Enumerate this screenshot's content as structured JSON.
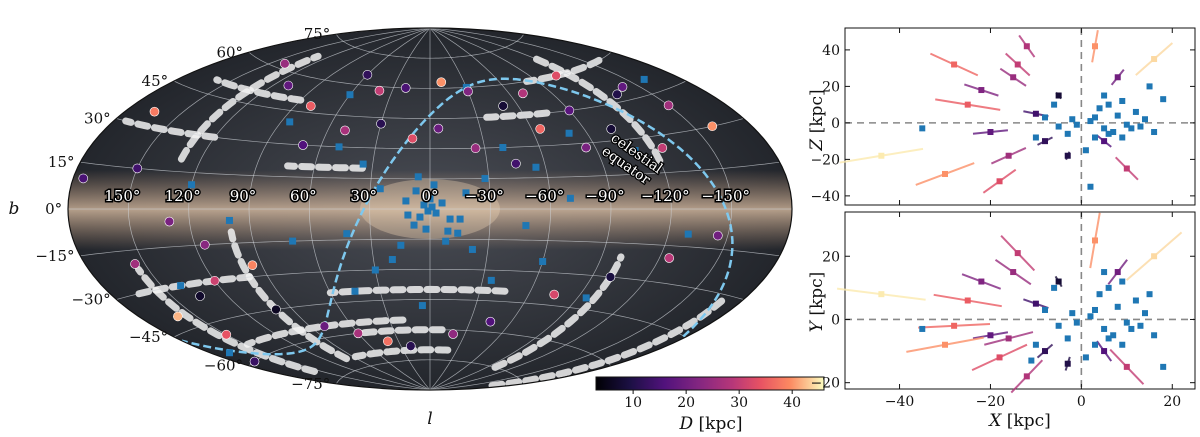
{
  "chart_data": [
    {
      "type": "scatter",
      "projection": "aitoff",
      "xlabel": "l",
      "ylabel": "b",
      "lon_tick_labels": [
        "150°",
        "120°",
        "90°",
        "60°",
        "30°",
        "0°",
        "−30°",
        "−60°",
        "−90°",
        "−120°",
        "−150°"
      ],
      "lon_ticks": [
        150,
        120,
        90,
        60,
        30,
        0,
        -30,
        -60,
        -90,
        -120,
        -150
      ],
      "lat_tick_labels": [
        "75°",
        "60°",
        "45°",
        "30°",
        "15°",
        "0°",
        "−15°",
        "−30°",
        "−45°",
        "−60°",
        "−75°"
      ],
      "lat_ticks": [
        75,
        60,
        45,
        30,
        15,
        0,
        -15,
        -30,
        -45,
        -60,
        -75
      ],
      "annotation": "celestial equator",
      "annotation_lines": [
        "celestial",
        "equator"
      ],
      "background": "all-sky Milky Way image with white survey footprints",
      "series": [
        {
          "marker": "square",
          "color": "#1f77b4",
          "points": [
            [
              0,
              5
            ],
            [
              3,
              2
            ],
            [
              -3,
              -2
            ],
            [
              5,
              -4
            ],
            [
              -6,
              3
            ],
            [
              8,
              -8
            ],
            [
              -10,
              -5
            ],
            [
              2,
              -10
            ],
            [
              -2,
              12
            ],
            [
              12,
              4
            ],
            [
              -14,
              -12
            ],
            [
              6,
              16
            ],
            [
              -8,
              -16
            ],
            [
              15,
              -18
            ],
            [
              -18,
              8
            ],
            [
              20,
              -25
            ],
            [
              -22,
              -20
            ],
            [
              25,
              10
            ],
            [
              -28,
              15
            ],
            [
              30,
              -30
            ],
            [
              -35,
              -35
            ],
            [
              35,
              22
            ],
            [
              -40,
              30
            ],
            [
              42,
              -12
            ],
            [
              -48,
              -8
            ],
            [
              -55,
              20
            ],
            [
              50,
              30
            ],
            [
              -60,
              -25
            ],
            [
              45,
              -40
            ],
            [
              -70,
              5
            ],
            [
              70,
              -15
            ],
            [
              -80,
              35
            ],
            [
              85,
              40
            ],
            [
              -95,
              -40
            ],
            [
              100,
              -5
            ],
            [
              -110,
              25
            ],
            [
              120,
              10
            ],
            [
              -130,
              -10
            ],
            [
              140,
              -30
            ],
            [
              -160,
              50
            ],
            [
              170,
              -55
            ],
            [
              60,
              55
            ],
            [
              -30,
              60
            ],
            [
              5,
              -48
            ],
            [
              -15,
              -5
            ],
            [
              1,
              -1
            ],
            [
              -1,
              1
            ],
            [
              7,
              9
            ],
            [
              -9,
              -11
            ],
            [
              11,
              -3
            ]
          ]
        },
        {
          "marker": "circle",
          "colormap": "magma",
          "color_key": "D",
          "points": [
            [
              140,
              62,
              25
            ],
            [
              110,
              55,
              18
            ],
            [
              80,
              48,
              35
            ],
            [
              60,
              65,
              12
            ],
            [
              40,
              58,
              30
            ],
            [
              20,
              60,
              15
            ],
            [
              -10,
              63,
              40
            ],
            [
              -30,
              58,
              22
            ],
            [
              -50,
              50,
              8
            ],
            [
              -70,
              55,
              28
            ],
            [
              -90,
              45,
              17
            ],
            [
              -110,
              60,
              33
            ],
            [
              -130,
              48,
              10
            ],
            [
              -150,
              40,
              26
            ],
            [
              165,
              35,
              38
            ],
            [
              150,
              15,
              14
            ],
            [
              130,
              -5,
              21
            ],
            [
              120,
              -30,
              31
            ],
            [
              100,
              -45,
              6
            ],
            [
              80,
              -55,
              19
            ],
            [
              60,
              -60,
              27
            ],
            [
              40,
              -65,
              37
            ],
            [
              20,
              -68,
              11
            ],
            [
              -20,
              -62,
              24
            ],
            [
              -45,
              -55,
              16
            ],
            [
              -75,
              -40,
              32
            ],
            [
              -100,
              -30,
              9
            ],
            [
              -125,
              -20,
              29
            ],
            [
              -145,
              -10,
              20
            ],
            [
              160,
              -40,
              42
            ],
            [
              170,
              -60,
              13
            ],
            [
              150,
              -50,
              34
            ],
            [
              135,
              -35,
              7
            ],
            [
              115,
              -15,
              23
            ],
            [
              95,
              -25,
              39
            ],
            [
              70,
              30,
              16
            ],
            [
              50,
              38,
              27
            ],
            [
              30,
              42,
              11
            ],
            [
              10,
              35,
              33
            ],
            [
              -5,
              40,
              19
            ],
            [
              -25,
              30,
              25
            ],
            [
              -45,
              22,
              14
            ],
            [
              -65,
              38,
              36
            ],
            [
              -85,
              28,
              21
            ],
            [
              -105,
              35,
              8
            ],
            [
              -125,
              25,
              30
            ],
            [
              -140,
              50,
              18
            ],
            [
              -160,
              30,
              40
            ],
            [
              175,
              10,
              15
            ],
            [
              155,
              -20,
              26
            ]
          ]
        }
      ]
    },
    {
      "type": "scatter",
      "xlabel": "",
      "ylabel": "Z [kpc]",
      "ylabel_var": "Z",
      "ylabel_unit": "[kpc]",
      "xlim": [
        -52,
        25
      ],
      "ylim": [
        -45,
        52
      ],
      "yticks": [
        -40,
        -20,
        0,
        20,
        40
      ],
      "ytick_labels": [
        "−40",
        "−20",
        "0",
        "20",
        "40"
      ],
      "xticks": [
        -40,
        -20,
        0,
        20
      ],
      "reference_lines": {
        "x": 0,
        "y": 0
      },
      "blue_points": [
        [
          2,
          1
        ],
        [
          5,
          -3
        ],
        [
          -2,
          2
        ],
        [
          8,
          4
        ],
        [
          12,
          6
        ],
        [
          -5,
          -2
        ],
        [
          3,
          -8
        ],
        [
          7,
          -5
        ],
        [
          10,
          -1
        ],
        [
          -8,
          3
        ],
        [
          15,
          20
        ],
        [
          9,
          12
        ],
        [
          4,
          8
        ],
        [
          -3,
          -6
        ],
        [
          6,
          10
        ],
        [
          11,
          -3
        ],
        [
          14,
          2
        ],
        [
          18,
          13
        ],
        [
          -10,
          -8
        ],
        [
          1,
          -15
        ],
        [
          2,
          -35
        ],
        [
          -35,
          -3
        ],
        [
          13,
          -2
        ],
        [
          -1,
          -1
        ],
        [
          3,
          3
        ],
        [
          6,
          -6
        ],
        [
          9,
          -8
        ],
        [
          16,
          -5
        ],
        [
          5,
          15
        ],
        [
          -6,
          10
        ]
      ],
      "colored_points": [
        [
          -14,
          32,
          30
        ],
        [
          -20,
          -5,
          18
        ],
        [
          -25,
          10,
          35
        ],
        [
          -30,
          -28,
          40
        ],
        [
          -44,
          -18,
          45
        ],
        [
          -15,
          25,
          25
        ],
        [
          -8,
          -10,
          12
        ],
        [
          -5,
          15,
          8
        ],
        [
          3,
          42,
          40
        ],
        [
          16,
          35,
          44
        ],
        [
          10,
          -25,
          30
        ],
        [
          -12,
          42,
          28
        ],
        [
          -22,
          18,
          22
        ],
        [
          -18,
          -32,
          33
        ],
        [
          8,
          25,
          20
        ],
        [
          -3,
          -18,
          10
        ],
        [
          -28,
          32,
          36
        ],
        [
          -10,
          5,
          14
        ],
        [
          5,
          -10,
          16
        ],
        [
          -16,
          -18,
          26
        ]
      ]
    },
    {
      "type": "scatter",
      "xlabel": "X [kpc]",
      "xlabel_var": "X",
      "xlabel_unit": "[kpc]",
      "ylabel": "Y [kpc]",
      "ylabel_var": "Y",
      "ylabel_unit": "[kpc]",
      "xlim": [
        -52,
        25
      ],
      "ylim": [
        -22,
        34
      ],
      "xticks": [
        -40,
        -20,
        0,
        20
      ],
      "xtick_labels": [
        "−40",
        "−20",
        "0",
        "20"
      ],
      "yticks": [
        -20,
        0,
        20
      ],
      "ytick_labels": [
        "−20",
        "0",
        "20"
      ],
      "reference_lines": {
        "x": 0,
        "y": 0
      },
      "blue_points": [
        [
          2,
          1
        ],
        [
          5,
          -3
        ],
        [
          -2,
          2
        ],
        [
          8,
          4
        ],
        [
          12,
          6
        ],
        [
          -5,
          -2
        ],
        [
          3,
          -8
        ],
        [
          7,
          -5
        ],
        [
          10,
          -1
        ],
        [
          -8,
          3
        ],
        [
          15,
          8
        ],
        [
          9,
          12
        ],
        [
          4,
          8
        ],
        [
          -3,
          -6
        ],
        [
          6,
          10
        ],
        [
          11,
          -3
        ],
        [
          14,
          2
        ],
        [
          18,
          -15
        ],
        [
          -10,
          -8
        ],
        [
          1,
          -12
        ],
        [
          -11,
          -13
        ],
        [
          -35,
          -3
        ],
        [
          13,
          -2
        ],
        [
          -1,
          -1
        ],
        [
          3,
          3
        ],
        [
          6,
          -6
        ],
        [
          9,
          -8
        ],
        [
          16,
          -5
        ],
        [
          5,
          15
        ],
        [
          -6,
          10
        ]
      ],
      "colored_points": [
        [
          -14,
          21,
          30
        ],
        [
          -20,
          -5,
          18
        ],
        [
          -25,
          6,
          35
        ],
        [
          -30,
          -8,
          40
        ],
        [
          -44,
          8,
          45
        ],
        [
          -15,
          15,
          25
        ],
        [
          -8,
          -10,
          12
        ],
        [
          -5,
          12,
          8
        ],
        [
          3,
          25,
          40
        ],
        [
          16,
          20,
          44
        ],
        [
          10,
          -15,
          30
        ],
        [
          -12,
          -18,
          28
        ],
        [
          -22,
          12,
          22
        ],
        [
          -18,
          -12,
          33
        ],
        [
          8,
          15,
          20
        ],
        [
          -3,
          -14,
          10
        ],
        [
          -28,
          -2,
          36
        ],
        [
          -10,
          5,
          14
        ],
        [
          5,
          -10,
          16
        ],
        [
          -16,
          -6,
          26
        ]
      ]
    },
    {
      "type": "colorbar",
      "colormap": "magma",
      "label": "D [kpc]",
      "label_var": "D",
      "label_unit": "[kpc]",
      "range": [
        3,
        46
      ],
      "ticks": [
        10,
        20,
        30,
        40
      ],
      "tick_labels": [
        "10",
        "20",
        "30",
        "40"
      ]
    }
  ]
}
